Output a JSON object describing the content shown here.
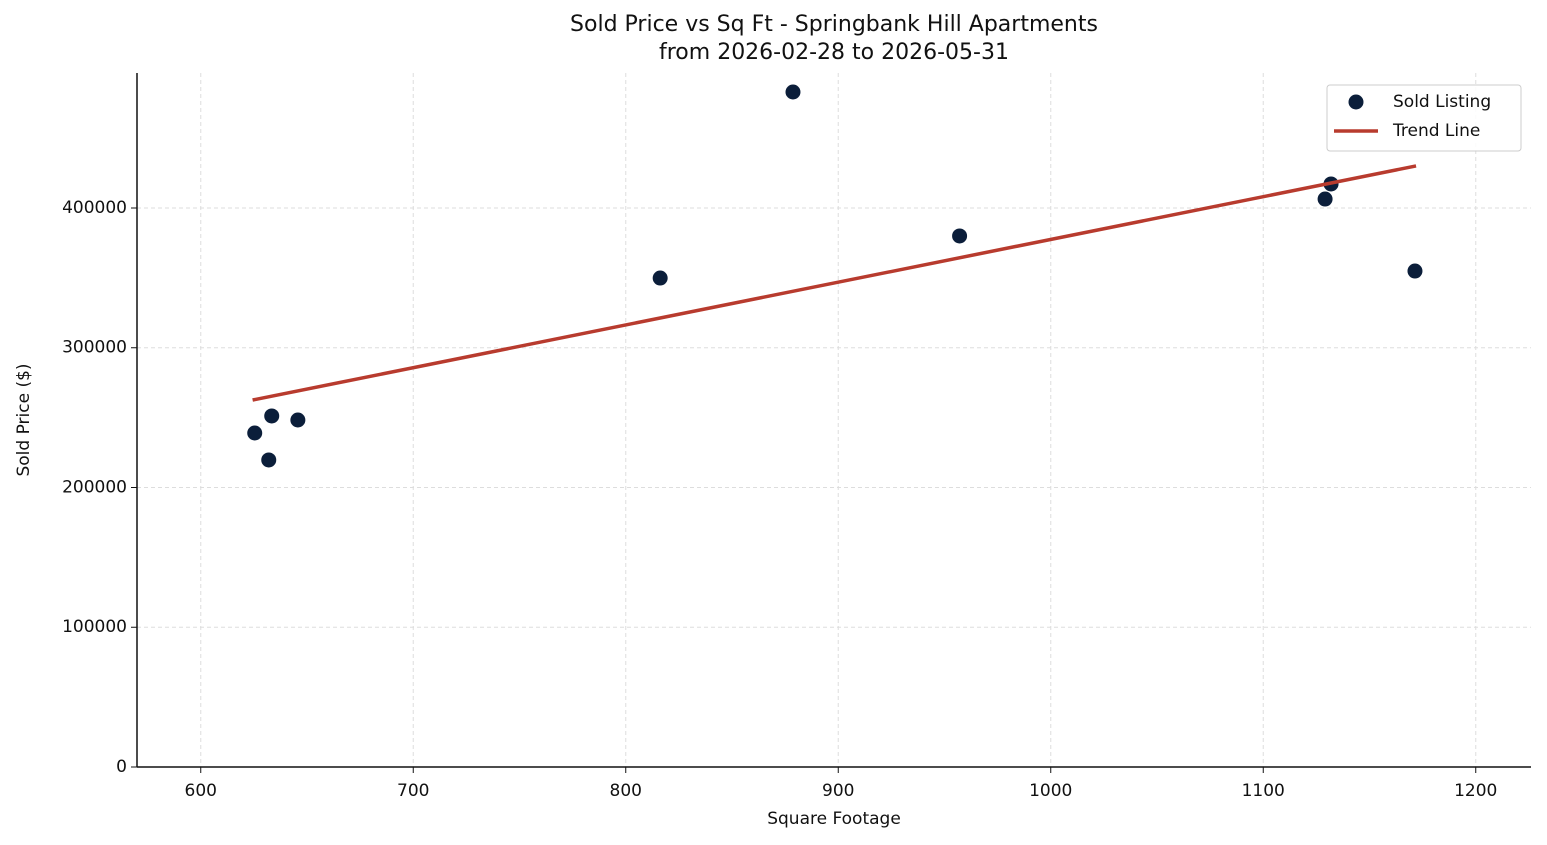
{
  "chart_data": {
    "type": "scatter",
    "title": "Sold Price vs Sq Ft - Springbank Hill Apartments",
    "subtitle": "from 2026-02-28 to 2026-05-31",
    "x_label": "Square Footage",
    "y_label": "Sold Price ($)",
    "xlim": [
      570,
      1226
    ],
    "xticks": [
      600,
      700,
      800,
      900,
      1000,
      1100,
      1200
    ],
    "ylim": [
      0,
      496600
    ],
    "yticks": [
      0,
      100000,
      200000,
      300000,
      400000
    ],
    "grid": true,
    "legend": "upper right",
    "series": [
      {
        "name": "Sold Listing",
        "type": "scatter",
        "color": "#0b1e3a",
        "x": [
          625.4,
          632,
          633.4,
          645.7,
          816.2,
          878.7,
          957.1,
          1129.1,
          1131.9,
          1171.4
        ],
        "values": [
          239000,
          219700,
          251200,
          248300,
          349900,
          483000,
          380000,
          406400,
          417200,
          354900
        ]
      },
      {
        "name": "Trend Line",
        "type": "line",
        "color": "#b83b2e",
        "x": [
          624.4,
          1171.9
        ],
        "values": [
          262600,
          430100
        ]
      }
    ]
  }
}
